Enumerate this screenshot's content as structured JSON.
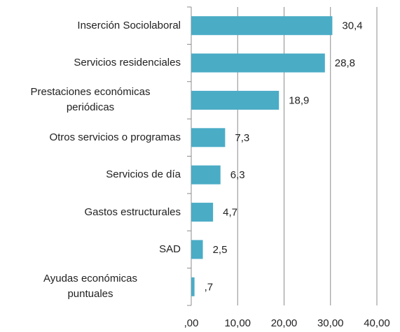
{
  "chart_data": {
    "type": "bar",
    "orientation": "horizontal",
    "categories": [
      "Inserción Sociolaboral",
      "Servicios residenciales",
      "Prestaciones económicas\nperiódicas",
      "Otros servicios o programas",
      "Servicios de día",
      "Gastos estructurales",
      "SAD",
      "Ayudas económicas\npuntuales"
    ],
    "values": [
      30.4,
      28.8,
      18.9,
      7.3,
      6.3,
      4.7,
      2.5,
      0.7
    ],
    "value_labels": [
      "30,4",
      "28,8",
      "18,9",
      "7,3",
      "6,3",
      "4,7",
      "2,5",
      ",7"
    ],
    "color": "#4bacc6",
    "xlim": [
      0,
      40
    ],
    "xticks": [
      {
        "value": 0,
        "label": ",00"
      },
      {
        "value": 10,
        "label": "10,00"
      },
      {
        "value": 20,
        "label": "20,00"
      },
      {
        "value": 30,
        "label": "30,00"
      },
      {
        "value": 40,
        "label": "40,00"
      }
    ],
    "grid": true
  }
}
